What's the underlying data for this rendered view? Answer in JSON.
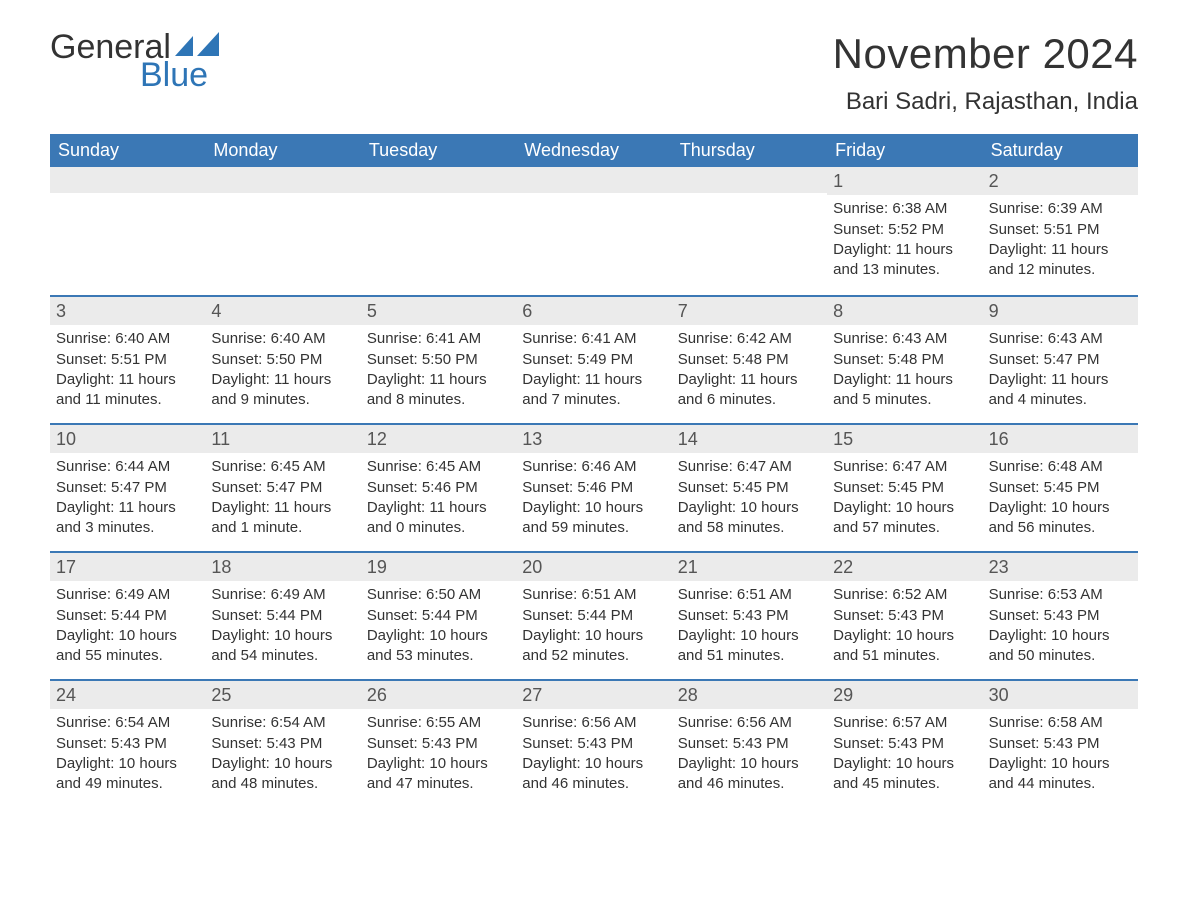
{
  "brand": {
    "word1": "General",
    "word2": "Blue",
    "accent_color": "#2e75b6"
  },
  "header": {
    "month": "November 2024",
    "location": "Bari Sadri, Rajasthan, India"
  },
  "style": {
    "header_bg": "#3b78b5",
    "header_text": "#ffffff",
    "daynum_bg": "#ebebeb",
    "row_border": "#3b78b5",
    "body_text": "#333333",
    "font_family": "Arial, Helvetica, sans-serif",
    "month_fontsize": 42,
    "location_fontsize": 24,
    "weekday_fontsize": 18,
    "cell_fontsize": 15
  },
  "weekdays": [
    "Sunday",
    "Monday",
    "Tuesday",
    "Wednesday",
    "Thursday",
    "Friday",
    "Saturday"
  ],
  "weeks": [
    [
      null,
      null,
      null,
      null,
      null,
      {
        "n": "1",
        "sunrise": "Sunrise: 6:38 AM",
        "sunset": "Sunset: 5:52 PM",
        "daylight": "Daylight: 11 hours and 13 minutes."
      },
      {
        "n": "2",
        "sunrise": "Sunrise: 6:39 AM",
        "sunset": "Sunset: 5:51 PM",
        "daylight": "Daylight: 11 hours and 12 minutes."
      }
    ],
    [
      {
        "n": "3",
        "sunrise": "Sunrise: 6:40 AM",
        "sunset": "Sunset: 5:51 PM",
        "daylight": "Daylight: 11 hours and 11 minutes."
      },
      {
        "n": "4",
        "sunrise": "Sunrise: 6:40 AM",
        "sunset": "Sunset: 5:50 PM",
        "daylight": "Daylight: 11 hours and 9 minutes."
      },
      {
        "n": "5",
        "sunrise": "Sunrise: 6:41 AM",
        "sunset": "Sunset: 5:50 PM",
        "daylight": "Daylight: 11 hours and 8 minutes."
      },
      {
        "n": "6",
        "sunrise": "Sunrise: 6:41 AM",
        "sunset": "Sunset: 5:49 PM",
        "daylight": "Daylight: 11 hours and 7 minutes."
      },
      {
        "n": "7",
        "sunrise": "Sunrise: 6:42 AM",
        "sunset": "Sunset: 5:48 PM",
        "daylight": "Daylight: 11 hours and 6 minutes."
      },
      {
        "n": "8",
        "sunrise": "Sunrise: 6:43 AM",
        "sunset": "Sunset: 5:48 PM",
        "daylight": "Daylight: 11 hours and 5 minutes."
      },
      {
        "n": "9",
        "sunrise": "Sunrise: 6:43 AM",
        "sunset": "Sunset: 5:47 PM",
        "daylight": "Daylight: 11 hours and 4 minutes."
      }
    ],
    [
      {
        "n": "10",
        "sunrise": "Sunrise: 6:44 AM",
        "sunset": "Sunset: 5:47 PM",
        "daylight": "Daylight: 11 hours and 3 minutes."
      },
      {
        "n": "11",
        "sunrise": "Sunrise: 6:45 AM",
        "sunset": "Sunset: 5:47 PM",
        "daylight": "Daylight: 11 hours and 1 minute."
      },
      {
        "n": "12",
        "sunrise": "Sunrise: 6:45 AM",
        "sunset": "Sunset: 5:46 PM",
        "daylight": "Daylight: 11 hours and 0 minutes."
      },
      {
        "n": "13",
        "sunrise": "Sunrise: 6:46 AM",
        "sunset": "Sunset: 5:46 PM",
        "daylight": "Daylight: 10 hours and 59 minutes."
      },
      {
        "n": "14",
        "sunrise": "Sunrise: 6:47 AM",
        "sunset": "Sunset: 5:45 PM",
        "daylight": "Daylight: 10 hours and 58 minutes."
      },
      {
        "n": "15",
        "sunrise": "Sunrise: 6:47 AM",
        "sunset": "Sunset: 5:45 PM",
        "daylight": "Daylight: 10 hours and 57 minutes."
      },
      {
        "n": "16",
        "sunrise": "Sunrise: 6:48 AM",
        "sunset": "Sunset: 5:45 PM",
        "daylight": "Daylight: 10 hours and 56 minutes."
      }
    ],
    [
      {
        "n": "17",
        "sunrise": "Sunrise: 6:49 AM",
        "sunset": "Sunset: 5:44 PM",
        "daylight": "Daylight: 10 hours and 55 minutes."
      },
      {
        "n": "18",
        "sunrise": "Sunrise: 6:49 AM",
        "sunset": "Sunset: 5:44 PM",
        "daylight": "Daylight: 10 hours and 54 minutes."
      },
      {
        "n": "19",
        "sunrise": "Sunrise: 6:50 AM",
        "sunset": "Sunset: 5:44 PM",
        "daylight": "Daylight: 10 hours and 53 minutes."
      },
      {
        "n": "20",
        "sunrise": "Sunrise: 6:51 AM",
        "sunset": "Sunset: 5:44 PM",
        "daylight": "Daylight: 10 hours and 52 minutes."
      },
      {
        "n": "21",
        "sunrise": "Sunrise: 6:51 AM",
        "sunset": "Sunset: 5:43 PM",
        "daylight": "Daylight: 10 hours and 51 minutes."
      },
      {
        "n": "22",
        "sunrise": "Sunrise: 6:52 AM",
        "sunset": "Sunset: 5:43 PM",
        "daylight": "Daylight: 10 hours and 51 minutes."
      },
      {
        "n": "23",
        "sunrise": "Sunrise: 6:53 AM",
        "sunset": "Sunset: 5:43 PM",
        "daylight": "Daylight: 10 hours and 50 minutes."
      }
    ],
    [
      {
        "n": "24",
        "sunrise": "Sunrise: 6:54 AM",
        "sunset": "Sunset: 5:43 PM",
        "daylight": "Daylight: 10 hours and 49 minutes."
      },
      {
        "n": "25",
        "sunrise": "Sunrise: 6:54 AM",
        "sunset": "Sunset: 5:43 PM",
        "daylight": "Daylight: 10 hours and 48 minutes."
      },
      {
        "n": "26",
        "sunrise": "Sunrise: 6:55 AM",
        "sunset": "Sunset: 5:43 PM",
        "daylight": "Daylight: 10 hours and 47 minutes."
      },
      {
        "n": "27",
        "sunrise": "Sunrise: 6:56 AM",
        "sunset": "Sunset: 5:43 PM",
        "daylight": "Daylight: 10 hours and 46 minutes."
      },
      {
        "n": "28",
        "sunrise": "Sunrise: 6:56 AM",
        "sunset": "Sunset: 5:43 PM",
        "daylight": "Daylight: 10 hours and 46 minutes."
      },
      {
        "n": "29",
        "sunrise": "Sunrise: 6:57 AM",
        "sunset": "Sunset: 5:43 PM",
        "daylight": "Daylight: 10 hours and 45 minutes."
      },
      {
        "n": "30",
        "sunrise": "Sunrise: 6:58 AM",
        "sunset": "Sunset: 5:43 PM",
        "daylight": "Daylight: 10 hours and 44 minutes."
      }
    ]
  ]
}
